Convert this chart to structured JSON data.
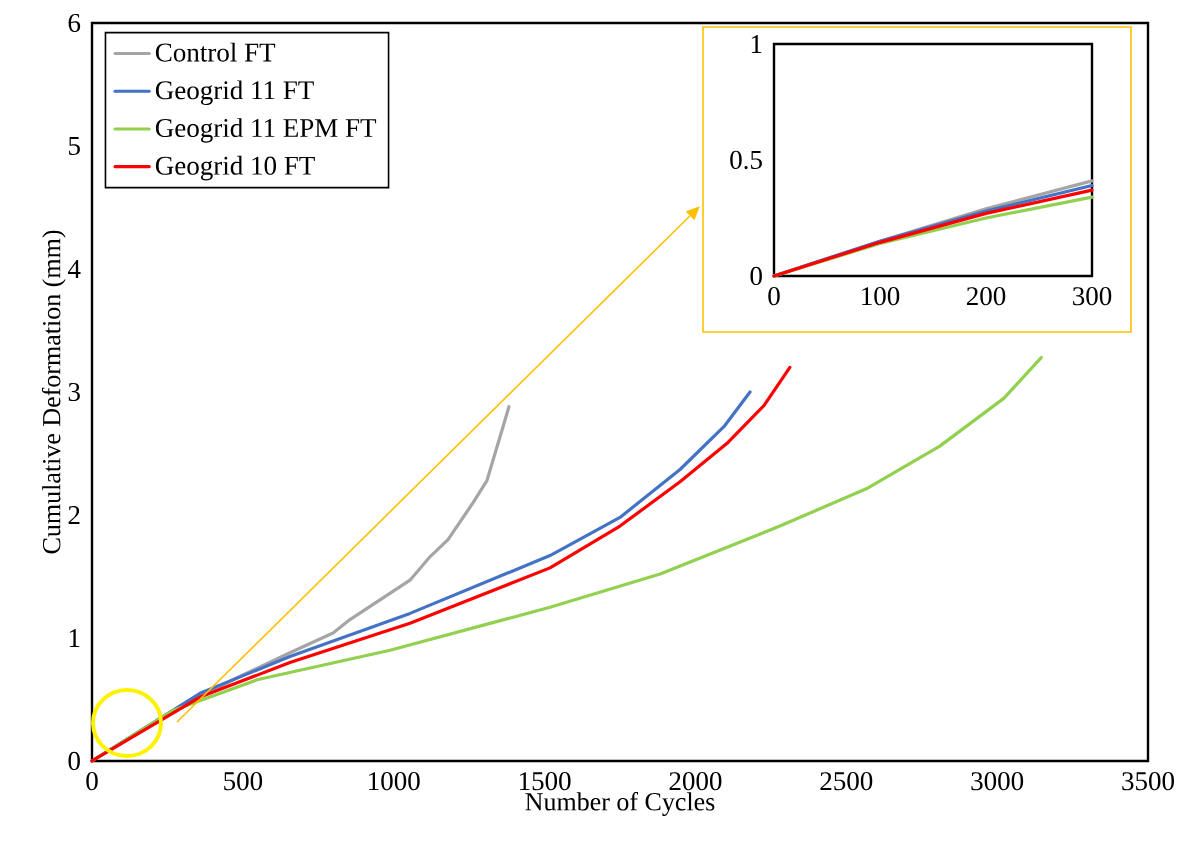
{
  "chart_data": [
    {
      "type": "line",
      "xlabel": "Number of Cycles",
      "ylabel": "Cumulative Deformation (mm)",
      "xlim": [
        0,
        3500
      ],
      "ylim": [
        0,
        6
      ],
      "xticks": [
        0,
        500,
        1000,
        1500,
        2000,
        2500,
        3000,
        3500
      ],
      "yticks": [
        0,
        1,
        2,
        3,
        4,
        5,
        6
      ],
      "legend": "top left",
      "grid": false,
      "series": [
        {
          "name": "Control FT",
          "color": "#a5a5a5",
          "x": [
            0,
            268,
            467,
            656,
            799,
            855,
            1054,
            1120,
            1180,
            1263,
            1309,
            1382
          ],
          "values": [
            0,
            0.41,
            0.66,
            0.88,
            1.04,
            1.15,
            1.47,
            1.66,
            1.8,
            2.1,
            2.28,
            2.88
          ]
        },
        {
          "name": "Geogrid 11 FT",
          "color": "#4472c4",
          "x": [
            0,
            358,
            656,
            1054,
            1518,
            1750,
            1949,
            2095,
            2181
          ],
          "values": [
            0,
            0.55,
            0.85,
            1.2,
            1.67,
            1.98,
            2.37,
            2.72,
            3.0
          ]
        },
        {
          "name": "Geogrid 11 EPM FT",
          "color": "#92d050",
          "x": [
            0,
            268,
            547,
            988,
            1518,
            1883,
            2280,
            2572,
            2810,
            3023,
            3146
          ],
          "values": [
            0,
            0.41,
            0.66,
            0.9,
            1.25,
            1.52,
            1.91,
            2.22,
            2.56,
            2.95,
            3.28
          ]
        },
        {
          "name": "Geogrid 10 FT",
          "color": "#ff0000",
          "x": [
            0,
            358,
            656,
            1054,
            1518,
            1750,
            1949,
            2108,
            2227,
            2313
          ],
          "values": [
            0,
            0.52,
            0.8,
            1.12,
            1.57,
            1.91,
            2.27,
            2.59,
            2.89,
            3.2
          ]
        }
      ]
    },
    {
      "type": "line",
      "xlim": [
        0,
        300
      ],
      "ylim": [
        0,
        1
      ],
      "xticks": [
        0,
        100,
        200,
        300
      ],
      "yticks": [
        0,
        0.5,
        1
      ],
      "grid": false,
      "series": [
        {
          "color": "#a5a5a5",
          "x": [
            0,
            100,
            200,
            300
          ],
          "values": [
            0,
            0.15,
            0.29,
            0.41
          ]
        },
        {
          "color": "#4472c4",
          "x": [
            0,
            100,
            200,
            300
          ],
          "values": [
            0,
            0.15,
            0.28,
            0.39
          ]
        },
        {
          "color": "#92d050",
          "x": [
            0,
            100,
            200,
            300
          ],
          "values": [
            0,
            0.14,
            0.25,
            0.34
          ]
        },
        {
          "color": "#ff0000",
          "x": [
            0,
            100,
            200,
            300
          ],
          "values": [
            0,
            0.145,
            0.27,
            0.37
          ]
        }
      ]
    }
  ]
}
